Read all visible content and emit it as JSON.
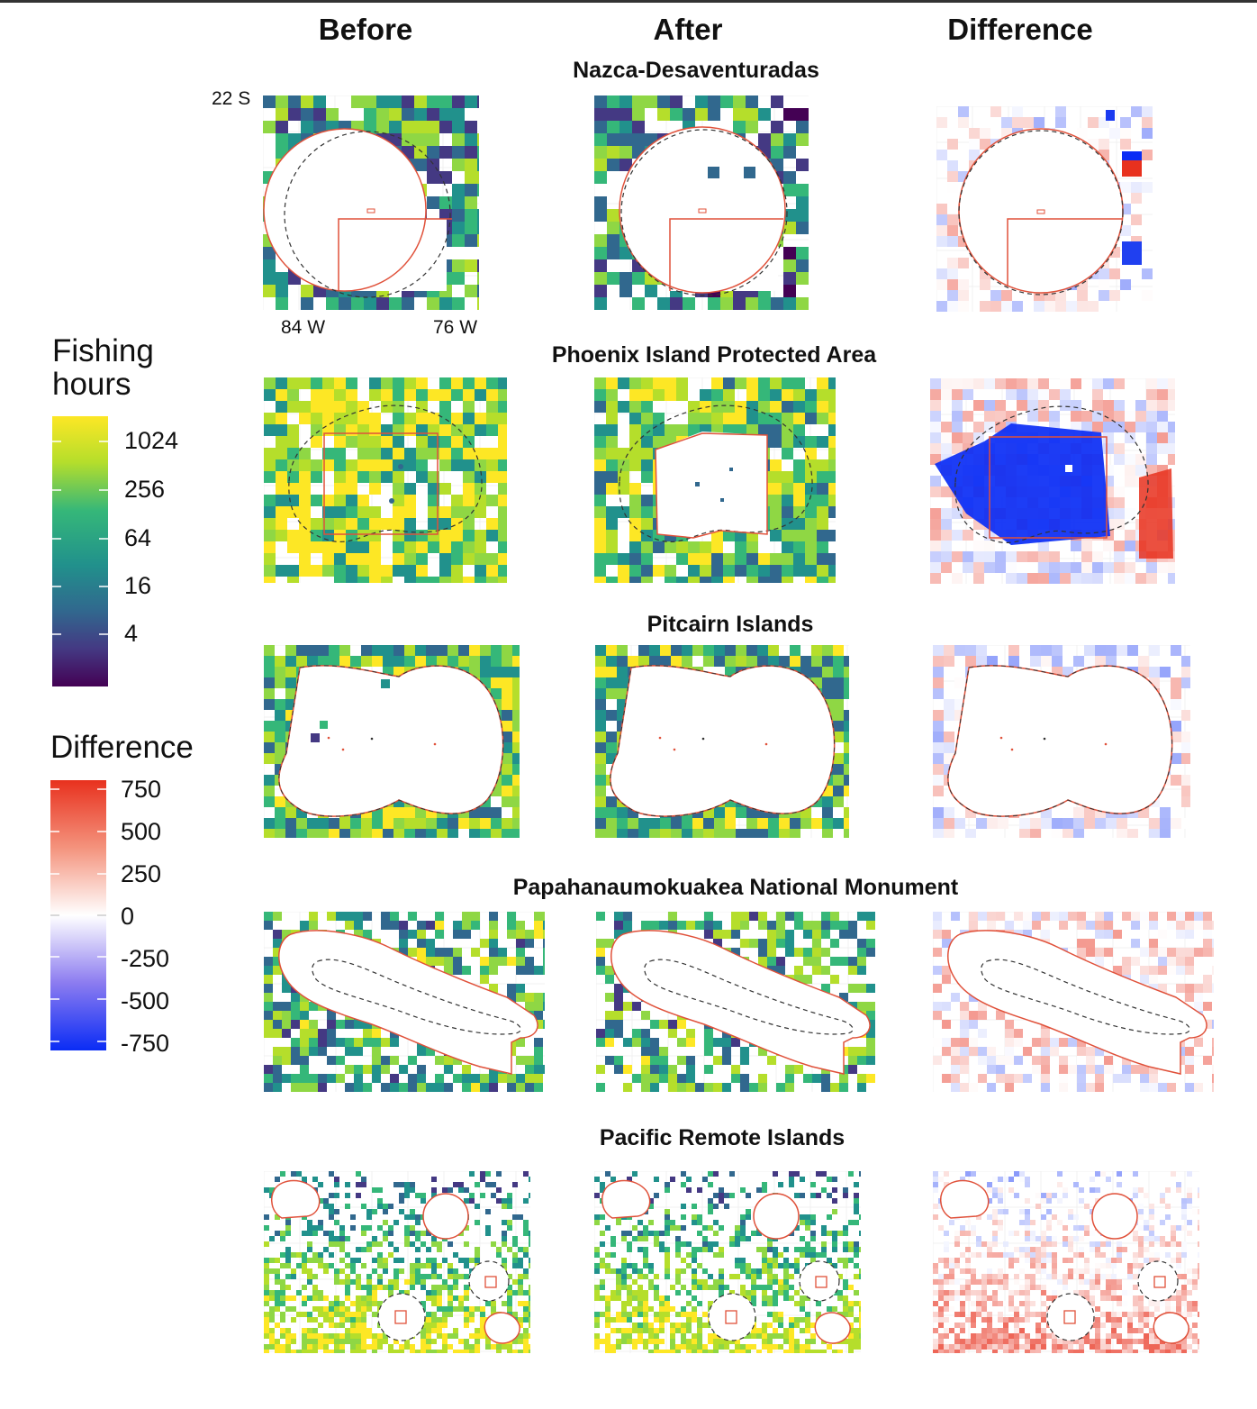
{
  "columns": [
    "Before",
    "After",
    "Difference"
  ],
  "rows": [
    {
      "title": "Nazca-Desaventuradas"
    },
    {
      "title": "Phoenix Island Protected Area"
    },
    {
      "title": "Pitcairn Islands"
    },
    {
      "title": "Papahanaumokuakea National Monument"
    },
    {
      "title": "Pacific Remote Islands"
    }
  ],
  "axis_labels": {
    "lat": "22 S",
    "lon_left": "84 W",
    "lon_right": "76 W"
  },
  "legend_fishing": {
    "title_line1": "Fishing",
    "title_line2": "hours",
    "ticks": [
      "1024",
      "256",
      "64",
      "16",
      "4"
    ],
    "colors": [
      "#fde725",
      "#b5de2b",
      "#35b779",
      "#21918c",
      "#31688e",
      "#443983",
      "#440154"
    ]
  },
  "legend_difference": {
    "title": "Difference",
    "ticks": [
      "750",
      "500",
      "250",
      "0",
      "-250",
      "-500",
      "-750"
    ],
    "colors": [
      "#e8311e",
      "#ffffff",
      "#0a2cf5"
    ]
  },
  "chart_data": {
    "type": "heatmap",
    "rows": [
      "Nazca-Desaventuradas",
      "Phoenix Island Protected Area",
      "Pitcairn Islands",
      "Papahanaumokuakea National Monument",
      "Pacific Remote Islands"
    ],
    "columns": [
      "Before",
      "After",
      "Difference"
    ],
    "fishing_scale": {
      "type": "log2",
      "ticks": [
        4,
        16,
        64,
        256,
        1024
      ]
    },
    "difference_scale": {
      "type": "diverging",
      "ticks": [
        750,
        500,
        250,
        0,
        -250,
        -500,
        -750
      ],
      "range": [
        -750,
        750
      ]
    }
  }
}
